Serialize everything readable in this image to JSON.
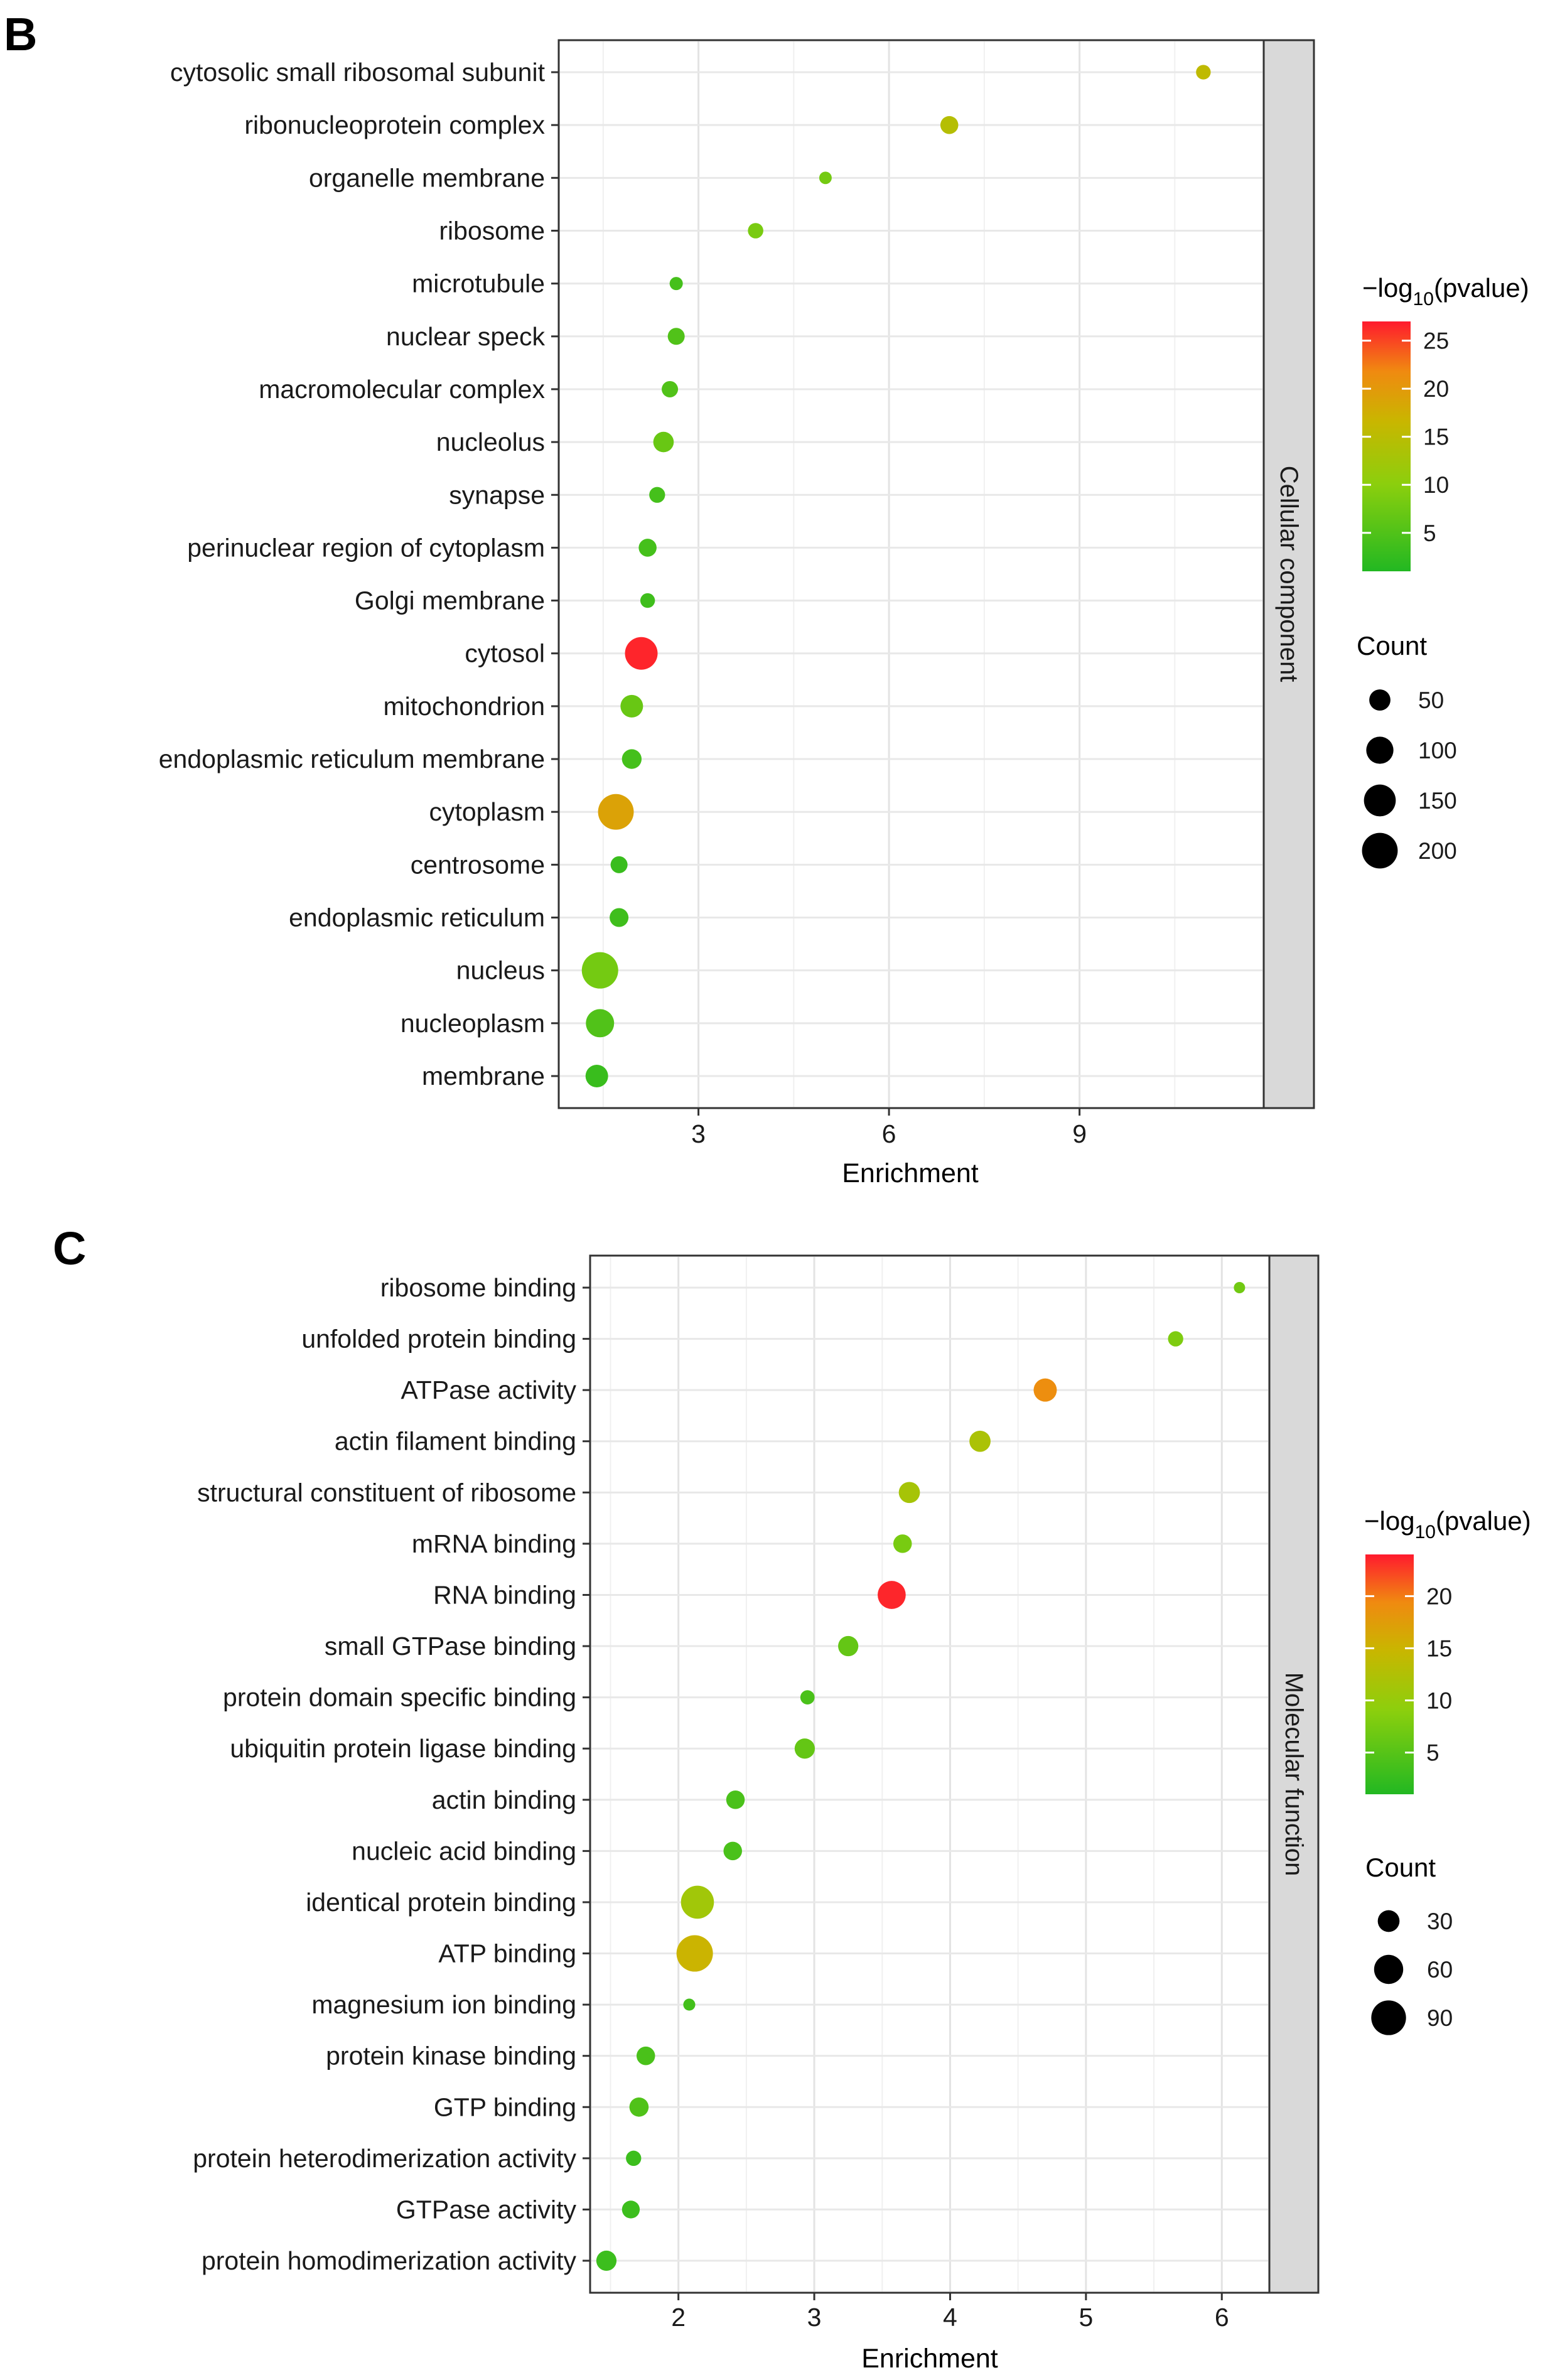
{
  "chart_data": [
    {
      "type": "scatter",
      "panel_label": "B",
      "facet": "Cellular component",
      "xlabel": "Enrichment",
      "ylabel": "",
      "xlim": [
        0.8,
        11.9
      ],
      "xticks": [
        3,
        6,
        9
      ],
      "grid": true,
      "legend_color_title": "−log",
      "legend_color_sub": "10",
      "legend_color_tail": "(pvalue)",
      "legend_color_ticks": [
        5,
        10,
        15,
        20,
        25
      ],
      "color_range": [
        1,
        27
      ],
      "legend_size_title": "Count",
      "legend_size_ticks": [
        50,
        100,
        150,
        200
      ],
      "points": [
        {
          "term": "cytosolic small ribosomal subunit",
          "enrichment": 10.95,
          "pvalue_log10": 15.5,
          "count": 15
        },
        {
          "term": "ribonucleoprotein complex",
          "enrichment": 6.95,
          "pvalue_log10": 14.5,
          "count": 30
        },
        {
          "term": "organelle membrane",
          "enrichment": 5.0,
          "pvalue_log10": 8.0,
          "count": 8
        },
        {
          "term": "ribosome",
          "enrichment": 3.9,
          "pvalue_log10": 8.5,
          "count": 18
        },
        {
          "term": "microtubule",
          "enrichment": 2.65,
          "pvalue_log10": 4.0,
          "count": 10
        },
        {
          "term": "nuclear speck",
          "enrichment": 2.65,
          "pvalue_log10": 5.0,
          "count": 25
        },
        {
          "term": "macromolecular complex",
          "enrichment": 2.55,
          "pvalue_log10": 5.0,
          "count": 22
        },
        {
          "term": "nucleolus",
          "enrichment": 2.45,
          "pvalue_log10": 7.0,
          "count": 45
        },
        {
          "term": "synapse",
          "enrichment": 2.35,
          "pvalue_log10": 4.0,
          "count": 20
        },
        {
          "term": "perinuclear region of cytoplasm",
          "enrichment": 2.2,
          "pvalue_log10": 4.0,
          "count": 30
        },
        {
          "term": "Golgi membrane",
          "enrichment": 2.2,
          "pvalue_log10": 3.5,
          "count": 15
        },
        {
          "term": "cytosol",
          "enrichment": 2.1,
          "pvalue_log10": 26.5,
          "count": 160
        },
        {
          "term": "mitochondrion",
          "enrichment": 1.95,
          "pvalue_log10": 7.0,
          "count": 60
        },
        {
          "term": "endoplasmic reticulum membrane",
          "enrichment": 1.95,
          "pvalue_log10": 4.0,
          "count": 40
        },
        {
          "term": "cytoplasm",
          "enrichment": 1.7,
          "pvalue_log10": 19.0,
          "count": 200
        },
        {
          "term": "centrosome",
          "enrichment": 1.75,
          "pvalue_log10": 3.0,
          "count": 25
        },
        {
          "term": "endoplasmic reticulum",
          "enrichment": 1.75,
          "pvalue_log10": 3.5,
          "count": 35
        },
        {
          "term": "nucleus",
          "enrichment": 1.45,
          "pvalue_log10": 8.0,
          "count": 210
        },
        {
          "term": "nucleoplasm",
          "enrichment": 1.45,
          "pvalue_log10": 5.0,
          "count": 110
        },
        {
          "term": "membrane",
          "enrichment": 1.4,
          "pvalue_log10": 3.0,
          "count": 60
        }
      ]
    },
    {
      "type": "scatter",
      "panel_label": "C",
      "facet": "Molecular function",
      "xlabel": "Enrichment",
      "ylabel": "",
      "xlim": [
        1.35,
        6.35
      ],
      "xticks": [
        2,
        3,
        4,
        5,
        6
      ],
      "grid": true,
      "legend_color_title": "−log",
      "legend_color_sub": "10",
      "legend_color_tail": "(pvalue)",
      "legend_color_ticks": [
        5,
        10,
        15,
        20
      ],
      "color_range": [
        1,
        24
      ],
      "legend_size_title": "Count",
      "legend_size_ticks": [
        30,
        60,
        90
      ],
      "points": [
        {
          "term": "ribosome binding",
          "enrichment": 6.13,
          "pvalue_log10": 7.0,
          "count": 5
        },
        {
          "term": "unfolded protein binding",
          "enrichment": 5.66,
          "pvalue_log10": 8.0,
          "count": 12
        },
        {
          "term": "ATPase activity",
          "enrichment": 4.7,
          "pvalue_log10": 19.0,
          "count": 35
        },
        {
          "term": "actin filament binding",
          "enrichment": 4.22,
          "pvalue_log10": 12.0,
          "count": 28
        },
        {
          "term": "structural constituent of ribosome",
          "enrichment": 3.7,
          "pvalue_log10": 11.5,
          "count": 28
        },
        {
          "term": "mRNA binding",
          "enrichment": 3.65,
          "pvalue_log10": 7.5,
          "count": 20
        },
        {
          "term": "RNA binding",
          "enrichment": 3.57,
          "pvalue_log10": 23.5,
          "count": 55
        },
        {
          "term": "small GTPase binding",
          "enrichment": 3.25,
          "pvalue_log10": 6.0,
          "count": 25
        },
        {
          "term": "protein domain specific binding",
          "enrichment": 2.95,
          "pvalue_log10": 4.0,
          "count": 10
        },
        {
          "term": "ubiquitin protein ligase binding",
          "enrichment": 2.93,
          "pvalue_log10": 6.0,
          "count": 25
        },
        {
          "term": "actin binding",
          "enrichment": 2.42,
          "pvalue_log10": 4.0,
          "count": 20
        },
        {
          "term": "nucleic acid binding",
          "enrichment": 2.4,
          "pvalue_log10": 4.0,
          "count": 20
        },
        {
          "term": "identical protein binding",
          "enrichment": 2.14,
          "pvalue_log10": 11.0,
          "count": 80
        },
        {
          "term": "ATP binding",
          "enrichment": 2.12,
          "pvalue_log10": 15.0,
          "count": 100
        },
        {
          "term": "magnesium ion binding",
          "enrichment": 2.08,
          "pvalue_log10": 3.5,
          "count": 6
        },
        {
          "term": "protein kinase binding",
          "enrichment": 1.76,
          "pvalue_log10": 4.0,
          "count": 20
        },
        {
          "term": "GTP binding",
          "enrichment": 1.71,
          "pvalue_log10": 4.5,
          "count": 22
        },
        {
          "term": "protein heterodimerization activity",
          "enrichment": 1.67,
          "pvalue_log10": 3.0,
          "count": 12
        },
        {
          "term": "GTPase activity",
          "enrichment": 1.65,
          "pvalue_log10": 3.0,
          "count": 18
        },
        {
          "term": "protein homodimerization activity",
          "enrichment": 1.47,
          "pvalue_log10": 3.0,
          "count": 25
        }
      ]
    }
  ]
}
